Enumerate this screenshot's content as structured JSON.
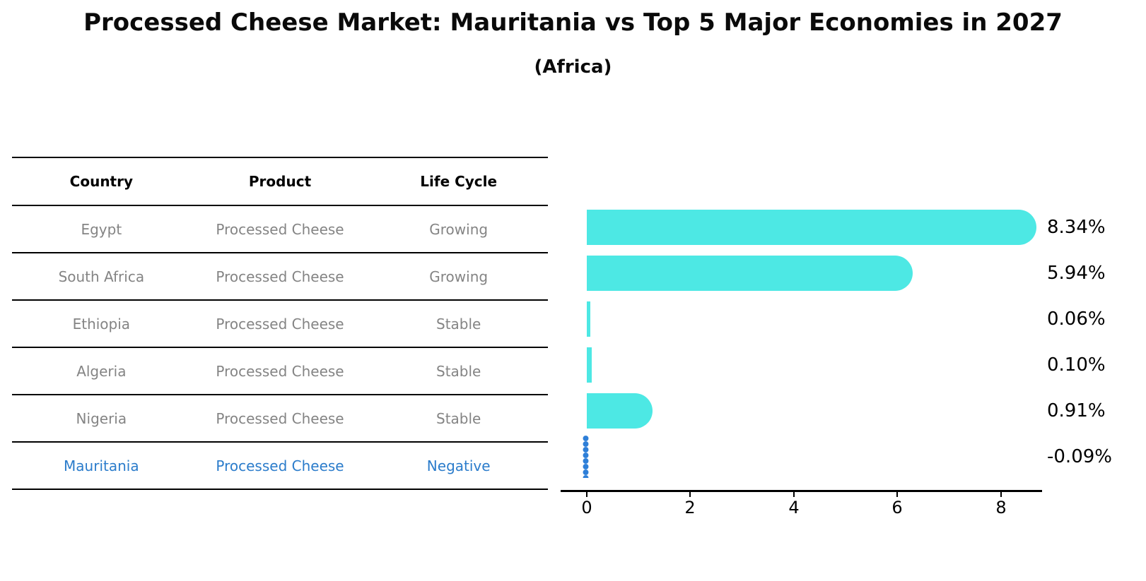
{
  "title": "Processed Cheese Market: Mauritania vs Top 5 Major Economies in 2027",
  "subtitle": "(Africa)",
  "table": {
    "headers": [
      "Country",
      "Product",
      "Life Cycle"
    ],
    "rows": [
      {
        "country": "Egypt",
        "product": "Processed Cheese",
        "life_cycle": "Growing",
        "highlighted": false
      },
      {
        "country": "South Africa",
        "product": "Processed Cheese",
        "life_cycle": "Growing",
        "highlighted": false
      },
      {
        "country": "Ethiopia",
        "product": "Processed Cheese",
        "life_cycle": "Stable",
        "highlighted": false
      },
      {
        "country": "Algeria",
        "product": "Processed Cheese",
        "life_cycle": "Stable",
        "highlighted": false
      },
      {
        "country": "Nigeria",
        "product": "Processed Cheese",
        "life_cycle": "Stable",
        "highlighted": false
      },
      {
        "country": "Mauritania",
        "product": "Processed Cheese",
        "life_cycle": "Negative",
        "highlighted": true
      }
    ]
  },
  "chart_data": {
    "type": "bar",
    "orientation": "horizontal",
    "title": "Processed Cheese Market: Mauritania vs Top 5 Major Economies in 2027",
    "subtitle": "(Africa)",
    "categories": [
      "Egypt",
      "South Africa",
      "Ethiopia",
      "Algeria",
      "Nigeria",
      "Mauritania"
    ],
    "values": [
      8.34,
      5.94,
      0.06,
      0.1,
      0.91,
      -0.09
    ],
    "labels": [
      "8.34%",
      "5.94%",
      "0.06%",
      "0.10%",
      "0.91%",
      "-0.09%"
    ],
    "x_ticks": [
      "0",
      "2",
      "4",
      "6",
      "8"
    ],
    "xlim": [
      -0.5,
      8.8
    ],
    "xlabel": "",
    "ylabel": "",
    "grid": false,
    "legend": "none",
    "bar_color": "#4DE8E4",
    "highlight_color": "#2E7FD8",
    "highlight_category": "Mauritania",
    "value_unit": "%"
  },
  "colors": {
    "background": "#ffffff",
    "bar_cyan": "#4DE8E4",
    "highlight_blue": "#2E7FD8",
    "highlight_text_blue": "#2B7CCB",
    "row_text_gray": "#848484",
    "text_black": "#0a0a0a"
  }
}
